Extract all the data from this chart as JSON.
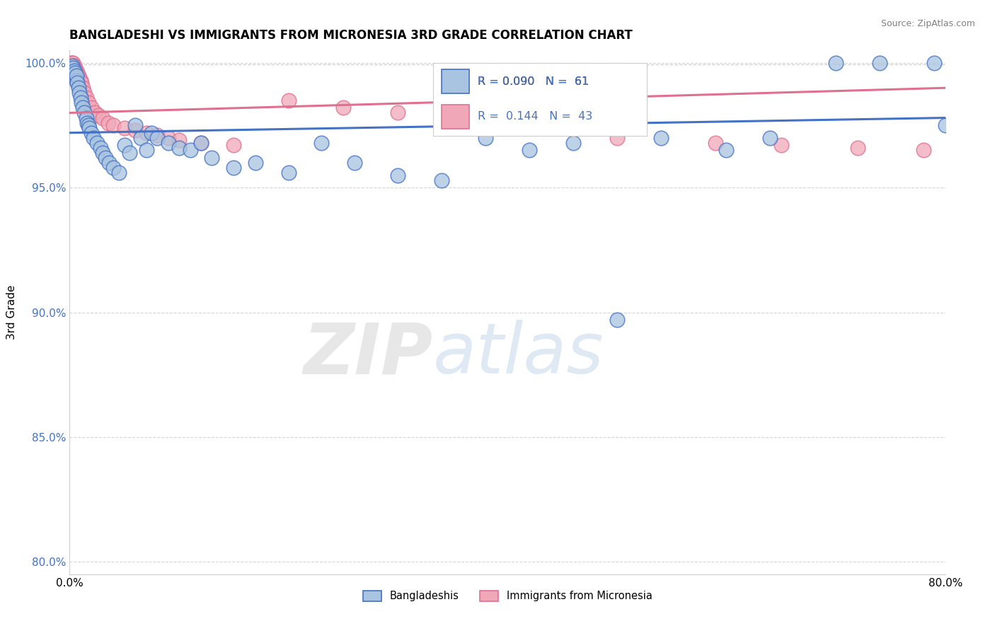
{
  "title": "BANGLADESHI VS IMMIGRANTS FROM MICRONESIA 3RD GRADE CORRELATION CHART",
  "source": "Source: ZipAtlas.com",
  "ylabel": "3rd Grade",
  "xlim": [
    0.0,
    0.8
  ],
  "ylim": [
    0.795,
    1.005
  ],
  "xticks": [
    0.0,
    0.2,
    0.4,
    0.6,
    0.8
  ],
  "xtick_labels": [
    "0.0%",
    "",
    "",
    "",
    "80.0%"
  ],
  "yticks": [
    0.8,
    0.85,
    0.9,
    0.95,
    1.0
  ],
  "ytick_labels": [
    "80.0%",
    "85.0%",
    "90.0%",
    "95.0%",
    "100.0%"
  ],
  "blue_color": "#a8c4e0",
  "pink_color": "#f0a8b8",
  "blue_edge_color": "#4472c4",
  "pink_edge_color": "#e07090",
  "blue_line_color": "#4472c4",
  "pink_line_color": "#e07090",
  "blue_line_y0": 0.972,
  "blue_line_y1": 0.978,
  "pink_line_y0": 0.98,
  "pink_line_y1": 0.99,
  "legend_blue_r": "R = 0.090",
  "legend_blue_n": "N =  61",
  "legend_pink_r": "R =  0.144",
  "legend_pink_n": "N =  43",
  "blue_scatter_x": [
    0.001,
    0.002,
    0.002,
    0.003,
    0.003,
    0.004,
    0.004,
    0.005,
    0.005,
    0.006,
    0.006,
    0.007,
    0.008,
    0.009,
    0.01,
    0.011,
    0.012,
    0.013,
    0.015,
    0.016,
    0.017,
    0.018,
    0.02,
    0.022,
    0.025,
    0.028,
    0.03,
    0.033,
    0.036,
    0.04,
    0.045,
    0.05,
    0.055,
    0.06,
    0.065,
    0.07,
    0.075,
    0.08,
    0.09,
    0.1,
    0.11,
    0.12,
    0.13,
    0.15,
    0.17,
    0.2,
    0.23,
    0.26,
    0.3,
    0.34,
    0.38,
    0.42,
    0.46,
    0.5,
    0.54,
    0.6,
    0.64,
    0.7,
    0.74,
    0.79,
    0.8
  ],
  "blue_scatter_y": [
    0.998,
    0.997,
    0.999,
    0.996,
    0.998,
    0.995,
    0.997,
    0.994,
    0.996,
    0.993,
    0.995,
    0.992,
    0.99,
    0.988,
    0.986,
    0.984,
    0.982,
    0.98,
    0.978,
    0.976,
    0.975,
    0.974,
    0.972,
    0.97,
    0.968,
    0.966,
    0.964,
    0.962,
    0.96,
    0.958,
    0.956,
    0.967,
    0.964,
    0.975,
    0.97,
    0.965,
    0.972,
    0.97,
    0.968,
    0.966,
    0.965,
    0.968,
    0.962,
    0.958,
    0.96,
    0.956,
    0.968,
    0.96,
    0.955,
    0.953,
    0.97,
    0.965,
    0.968,
    0.897,
    0.97,
    0.965,
    0.97,
    1.0,
    1.0,
    1.0,
    0.975
  ],
  "pink_scatter_x": [
    0.001,
    0.002,
    0.002,
    0.003,
    0.003,
    0.004,
    0.004,
    0.005,
    0.005,
    0.006,
    0.007,
    0.008,
    0.009,
    0.01,
    0.011,
    0.012,
    0.013,
    0.015,
    0.017,
    0.02,
    0.023,
    0.026,
    0.03,
    0.035,
    0.04,
    0.05,
    0.06,
    0.07,
    0.08,
    0.09,
    0.1,
    0.12,
    0.15,
    0.2,
    0.25,
    0.3,
    0.38,
    0.43,
    0.5,
    0.59,
    0.65,
    0.72,
    0.78
  ],
  "pink_scatter_y": [
    1.0,
    0.999,
    1.0,
    0.998,
    1.0,
    0.997,
    0.999,
    0.996,
    0.998,
    0.997,
    0.996,
    0.995,
    0.994,
    0.993,
    0.992,
    0.99,
    0.988,
    0.986,
    0.984,
    0.982,
    0.98,
    0.979,
    0.978,
    0.976,
    0.975,
    0.974,
    0.973,
    0.972,
    0.971,
    0.97,
    0.969,
    0.968,
    0.967,
    0.985,
    0.982,
    0.98,
    0.974,
    0.974,
    0.97,
    0.968,
    0.967,
    0.966,
    0.965
  ]
}
